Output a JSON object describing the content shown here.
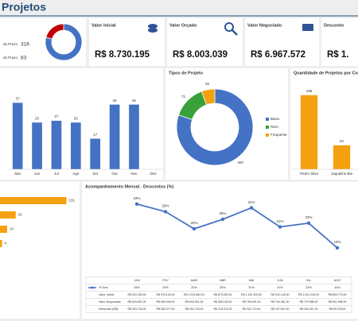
{
  "header": {
    "title": "Projetos"
  },
  "kpis": [
    {
      "label": "Valor Inicial",
      "value": "R$ 8.730.195"
    },
    {
      "label": "Valor Orçado",
      "value": "R$ 8.003.039"
    },
    {
      "label": "Valor Negociado",
      "value": "R$ 6.967.572"
    },
    {
      "label": "Desconto",
      "value": "R$ 1."
    }
  ],
  "chart_data": [
    {
      "type": "pie",
      "categories": [
        "do Prazo",
        "do Prazo"
      ],
      "values": [
        316,
        83
      ],
      "colors": [
        "#4472c4",
        "#c00000"
      ]
    },
    {
      "type": "bar",
      "categories": [
        "Mai",
        "Jun",
        "Jul",
        "Ago",
        "Set",
        "Out",
        "Nov",
        "Dez"
      ],
      "values": [
        37,
        26,
        27,
        26,
        17,
        36,
        36,
        null
      ],
      "color": "#4472c4",
      "ylim": [
        0,
        50
      ]
    },
    {
      "type": "pie",
      "title": "Tipos de Projeto",
      "categories": [
        "Baixo",
        "Raro",
        "Frequente"
      ],
      "values": [
        400,
        71,
        28
      ],
      "colors": [
        "#4472c4",
        "#3aa13a",
        "#f5a00e"
      ],
      "legend": "right"
    },
    {
      "type": "bar",
      "title": "Quantidade de Projetos por Colab",
      "categories": [
        "Pedro Silva",
        "Jaqueline Bia"
      ],
      "values": [
        198,
        64
      ],
      "color": "#f5a00e",
      "ylim": [
        0,
        240
      ]
    },
    {
      "type": "hbar",
      "values": [
        131,
        31,
        14,
        4
      ],
      "color": "#f5a00e",
      "xlim": [
        0,
        160
      ]
    },
    {
      "type": "line",
      "title": "Acompanhamento Mensal - Descontos (%)",
      "categories": [
        "JAN",
        "FEV",
        "MAR",
        "ABR",
        "MAI",
        "JUN",
        "JUL",
        "AGO"
      ],
      "series": [
        {
          "name": "% Des",
          "color": "#4472c4",
          "values": [
            33,
            29,
            20,
            25,
            31,
            21,
            23,
            10
          ],
          "value_labels": [
            "33%",
            "29%",
            "20%",
            "25%",
            "31%",
            "21%",
            "23%",
            "10%"
          ]
        }
      ],
      "ylim": [
        0,
        40
      ],
      "table": {
        "rows": [
          {
            "label": "Valor Inicial",
            "cells": [
              "R$ 920.435,00",
              "R$ 976.125,00",
              "R$ 1.023.664,00",
              "R$ 873.502,00",
              "R$ 1.102.320,00",
              "R$ 942.128,00",
              "R$ 1.001.245,00",
              "R$ 890.776,00"
            ]
          },
          {
            "label": "Valor Negociado",
            "cells": [
              "R$ 616.691,00",
              "R$ 693.048,00",
              "R$ 818.931,00",
              "R$ 655.126,00",
              "R$ 760.601,00",
              "R$ 744.281,00",
              "R$ 770.958,00",
              "R$ 801.698,00"
            ]
          },
          {
            "label": "Desconto (R$)",
            "cells": [
              "R$ 303.744,00",
              "R$ 283.077,00",
              "R$ 204.733,00",
              "R$ 218.376,00",
              "R$ 341.719,00",
              "R$ 197.847,00",
              "R$ 230.287,00",
              "R$ 89.078,00"
            ]
          }
        ]
      }
    }
  ]
}
